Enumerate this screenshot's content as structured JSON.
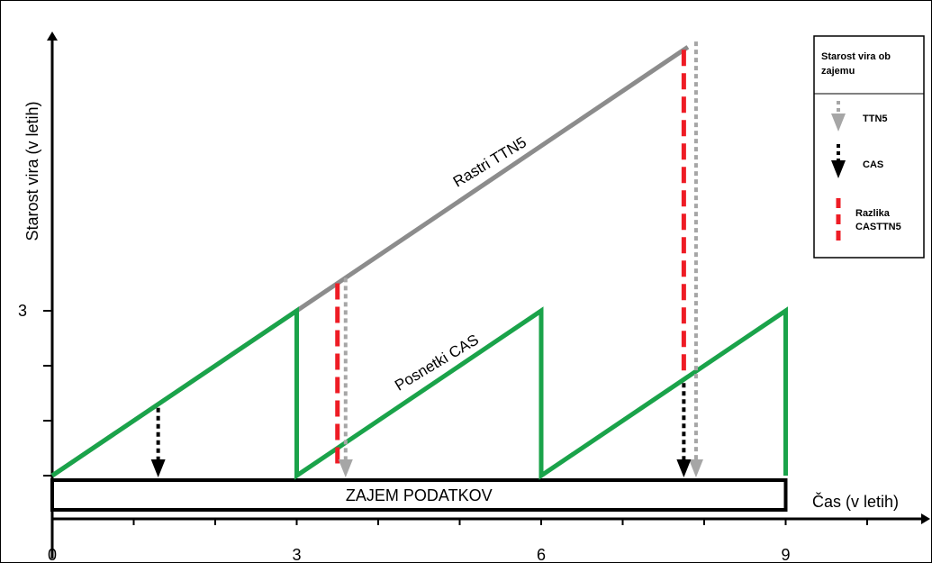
{
  "chart_data": {
    "type": "line",
    "ylabel": "Starost vira (v letih)",
    "xlabel": "Čas (v letih)",
    "x_ticks": [
      "0",
      "3",
      "6",
      "9"
    ],
    "y_ticks": [
      "3"
    ],
    "xlim": [
      0,
      11
    ],
    "ylim": [
      0,
      9
    ],
    "bar_label": "ZAJEM PODATKOV",
    "series": [
      {
        "label": "Rastri TTN5",
        "color": "#8c8c8c",
        "x": [
          0,
          7.8
        ],
        "y": [
          0,
          7.8
        ]
      },
      {
        "label": "Posnetki CAS",
        "color": "#1aa34a",
        "x": [
          0,
          3,
          3,
          6,
          6,
          9,
          9
        ],
        "y": [
          0,
          3,
          0,
          3,
          0,
          3,
          0
        ]
      }
    ],
    "arrows": {
      "ttn5": [
        {
          "x": 3.6
        },
        {
          "x": 7.9
        }
      ],
      "cas": [
        {
          "x": 1.3
        },
        {
          "x": 7.75
        }
      ],
      "difference": [
        {
          "x": 3.5
        },
        {
          "x": 7.75
        }
      ]
    },
    "legend": {
      "title": "Starost vira ob zajemu",
      "position": "top-right",
      "items": [
        {
          "key": "ttn5",
          "label": "TTN5",
          "color": "#a6a6a6"
        },
        {
          "key": "cas",
          "label": "CAS",
          "color": "#000000"
        },
        {
          "key": "diff",
          "label": "Razlika CASTTN5",
          "color": "#ee1c25"
        }
      ]
    }
  }
}
